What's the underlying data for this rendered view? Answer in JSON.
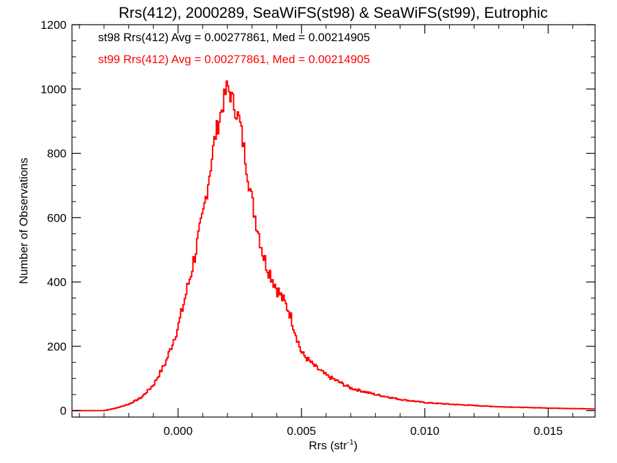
{
  "chart_data": {
    "type": "histogram",
    "title": "Rrs(412), 2000289, SeaWiFS(st98) & SeaWiFS(st99), Eutrophic",
    "xlabel": {
      "main": "Rrs (str",
      "superscript": "-1",
      "close": ")"
    },
    "ylabel": "Number of Observations",
    "xlim": [
      -0.0043,
      0.0169
    ],
    "ylim": [
      -20,
      1200
    ],
    "xticks": [
      0.0,
      0.005,
      0.01,
      0.015
    ],
    "xtick_labels": [
      "0.000",
      "0.005",
      "0.010",
      "0.015"
    ],
    "yticks": [
      0,
      200,
      400,
      600,
      800,
      1000,
      1200
    ],
    "ytick_labels": [
      "0",
      "200",
      "400",
      "600",
      "800",
      "1000",
      "1200"
    ],
    "annotations": [
      {
        "text": "st98 Rrs(412) Avg = 0.00277861, Med = 0.00214905",
        "color": "#000000"
      },
      {
        "text": "st99 Rrs(412) Avg = 0.00277861, Med = 0.00214905",
        "color": "#ff0000"
      }
    ],
    "series": [
      {
        "color": "#ff0000",
        "profile": [
          [
            -0.0043,
            0
          ],
          [
            -0.003,
            0
          ],
          [
            -0.0025,
            8
          ],
          [
            -0.002,
            20
          ],
          [
            -0.0015,
            40
          ],
          [
            -0.001,
            80
          ],
          [
            -0.0005,
            150
          ],
          [
            0.0,
            260
          ],
          [
            0.0005,
            420
          ],
          [
            0.001,
            600
          ],
          [
            0.0015,
            850
          ],
          [
            0.002,
            1010
          ],
          [
            0.0025,
            900
          ],
          [
            0.003,
            650
          ],
          [
            0.0035,
            470
          ],
          [
            0.004,
            380
          ],
          [
            0.0045,
            310
          ],
          [
            0.005,
            180
          ],
          [
            0.0055,
            140
          ],
          [
            0.006,
            110
          ],
          [
            0.007,
            70
          ],
          [
            0.008,
            50
          ],
          [
            0.009,
            35
          ],
          [
            0.01,
            25
          ],
          [
            0.011,
            20
          ],
          [
            0.013,
            12
          ],
          [
            0.015,
            8
          ],
          [
            0.0169,
            5
          ]
        ]
      }
    ]
  }
}
